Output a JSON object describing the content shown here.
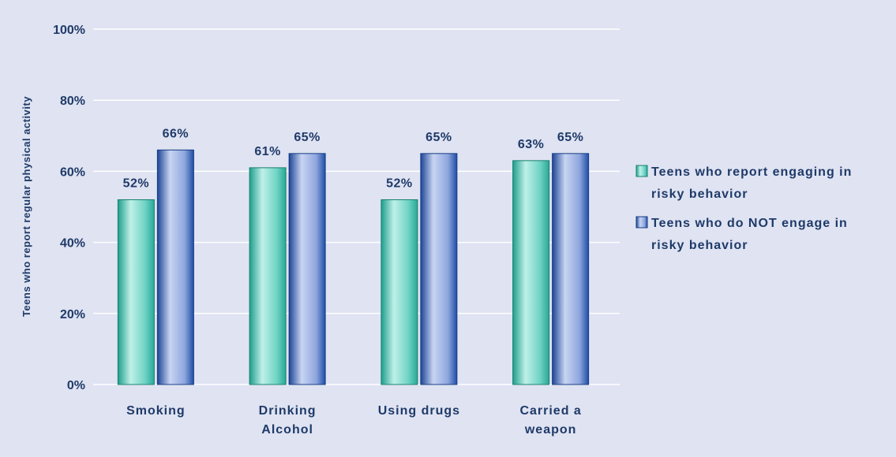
{
  "chart_data": {
    "type": "bar",
    "categories": [
      [
        "Smoking"
      ],
      [
        "Drinking",
        "Alcohol"
      ],
      [
        "Using drugs"
      ],
      [
        "Carried a",
        "weapon"
      ]
    ],
    "series": [
      {
        "name_lines": [
          "Teens who report engaging in",
          "risky behavior"
        ],
        "values": [
          52,
          61,
          52,
          63
        ],
        "labels": [
          "52%",
          "61%",
          "52%",
          "63%"
        ],
        "color": "#3bb8a8"
      },
      {
        "name_lines": [
          "Teens who do NOT engage in",
          "risky behavior"
        ],
        "values": [
          66,
          65,
          65,
          65
        ],
        "labels": [
          "66%",
          "65%",
          "65%",
          "65%"
        ],
        "color": "#2a5aa8"
      }
    ],
    "ylabel": "Teens who report regular physical activity",
    "yticks": [
      "0%",
      "20%",
      "40%",
      "60%",
      "80%",
      "100%"
    ],
    "ylim": [
      0,
      100
    ],
    "grid": true,
    "legend_position": "right"
  },
  "colors": {
    "background": "#dfe3f2",
    "gridline": "#ffffff",
    "text": "#1f3a68"
  }
}
